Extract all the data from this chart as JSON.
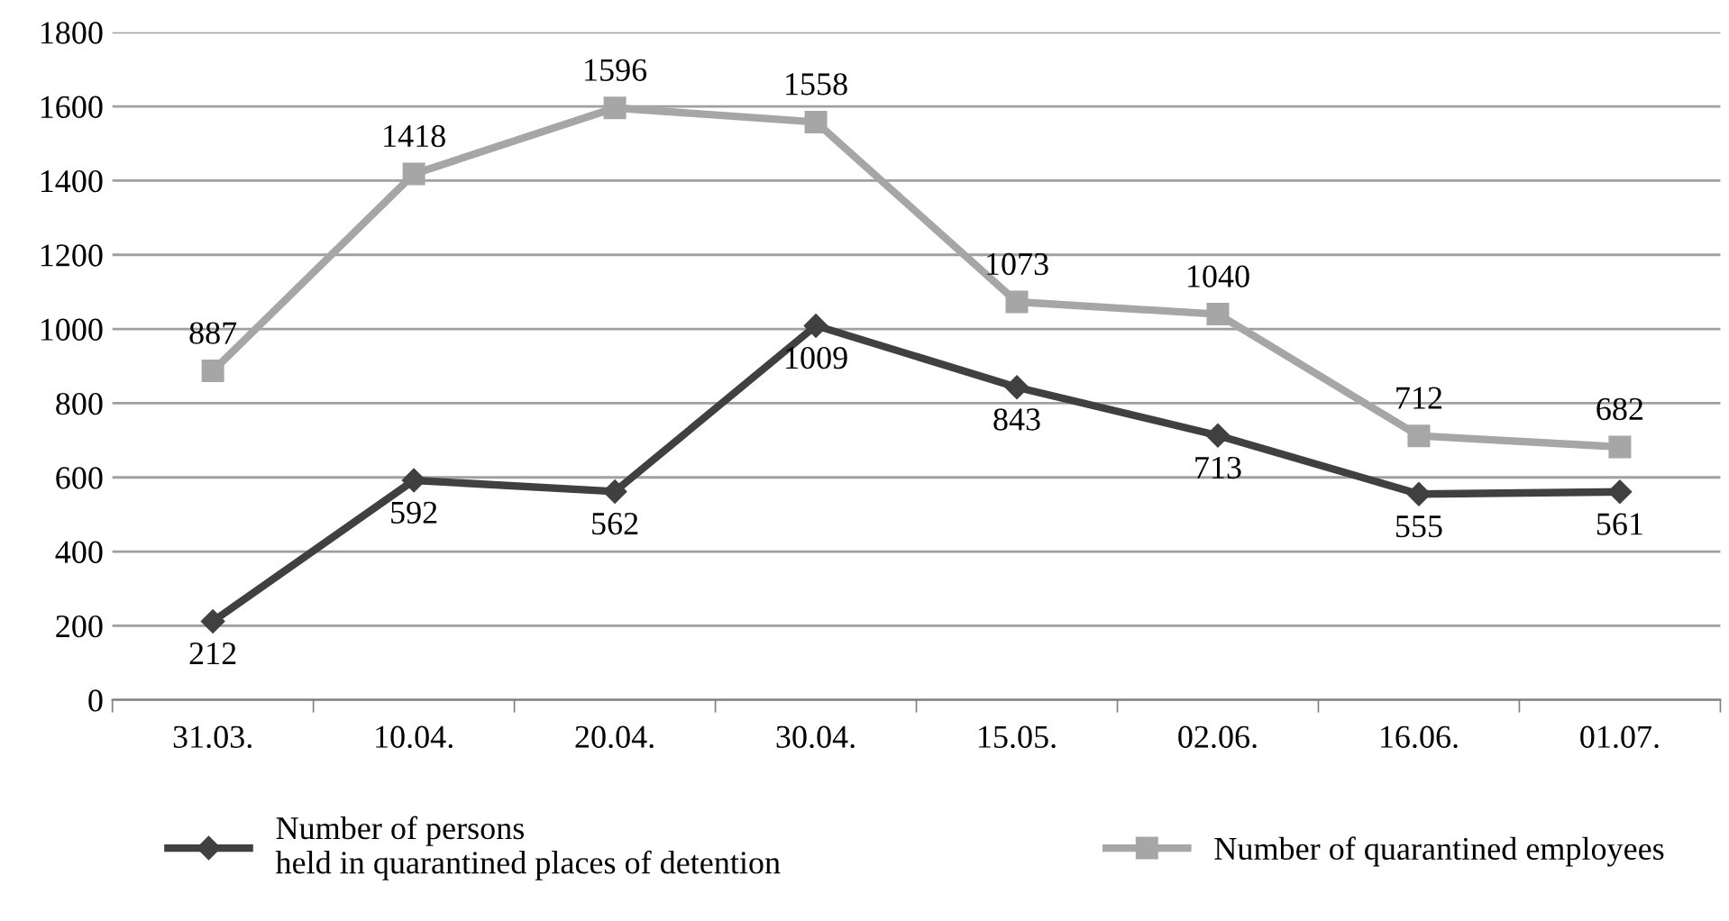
{
  "chart_data": {
    "type": "line",
    "categories": [
      "31.03.",
      "10.04.",
      "20.04.",
      "30.04.",
      "15.05.",
      "02.06.",
      "16.06.",
      "01.07."
    ],
    "series": [
      {
        "name": "Number of persons\nheld in quarantined places of detention",
        "color": "#404040",
        "marker": "diamond",
        "values": [
          212,
          592,
          562,
          1009,
          843,
          713,
          555,
          561
        ]
      },
      {
        "name": "Number of quarantined employees",
        "color": "#a6a6a6",
        "marker": "square",
        "values": [
          887,
          1418,
          1596,
          1558,
          1073,
          1040,
          712,
          682
        ]
      }
    ],
    "ylim": [
      0,
      1800
    ],
    "yticks": [
      0,
      200,
      400,
      600,
      800,
      1000,
      1200,
      1400,
      1600,
      1800
    ],
    "grid": "y",
    "legend": "bottom",
    "data_labels": true,
    "line_style": "solid"
  }
}
